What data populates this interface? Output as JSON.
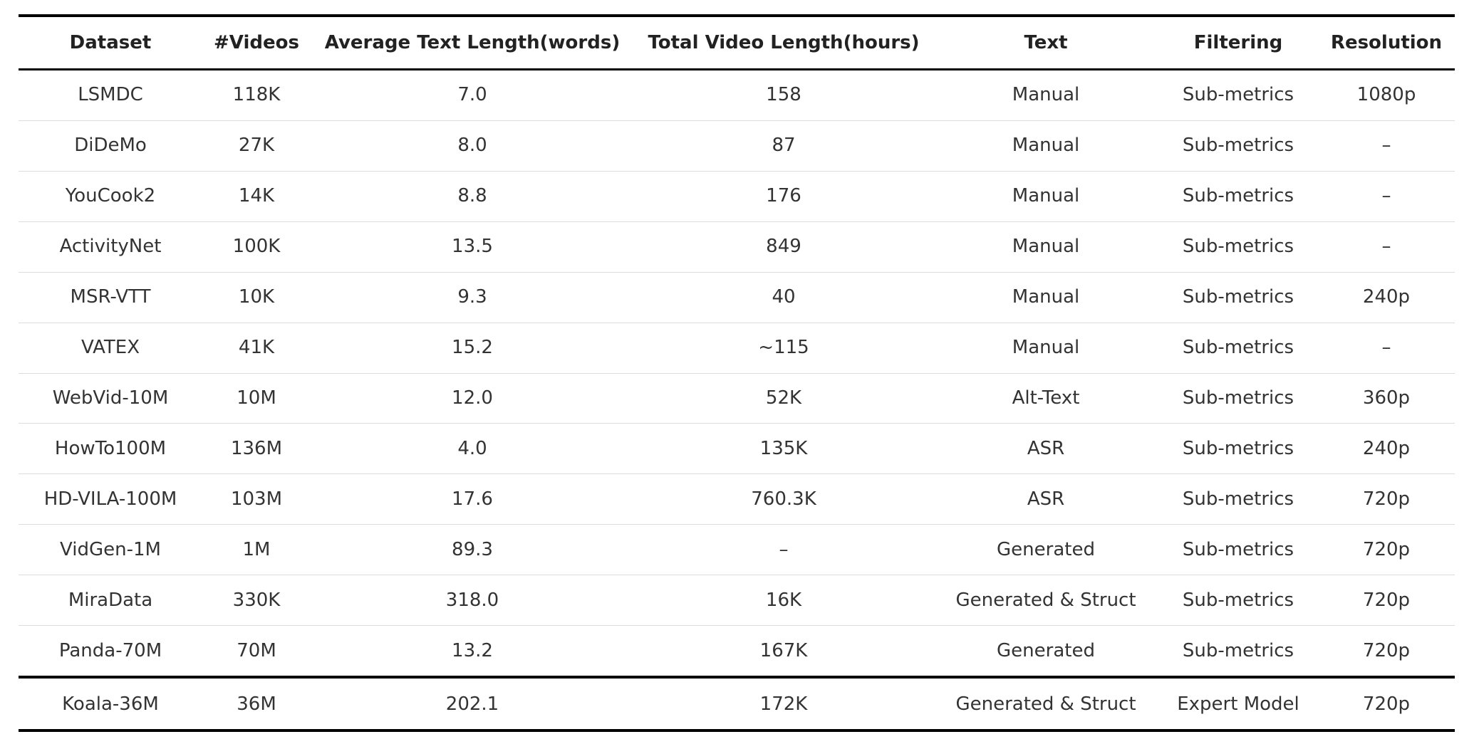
{
  "table": {
    "header": [
      "Dataset",
      "#Videos",
      "Average Text Length(words)",
      "Total Video Length(hours)",
      "Text",
      "Filtering",
      "Resolution"
    ],
    "rows": [
      [
        "LSMDC",
        "118K",
        "7.0",
        "158",
        "Manual",
        "Sub-metrics",
        "1080p"
      ],
      [
        "DiDeMo",
        "27K",
        "8.0",
        "87",
        "Manual",
        "Sub-metrics",
        "–"
      ],
      [
        "YouCook2",
        "14K",
        "8.8",
        "176",
        "Manual",
        "Sub-metrics",
        "–"
      ],
      [
        "ActivityNet",
        "100K",
        "13.5",
        "849",
        "Manual",
        "Sub-metrics",
        "–"
      ],
      [
        "MSR-VTT",
        "10K",
        "9.3",
        "40",
        "Manual",
        "Sub-metrics",
        "240p"
      ],
      [
        "VATEX",
        "41K",
        "15.2",
        "~115",
        "Manual",
        "Sub-metrics",
        "–"
      ],
      [
        "WebVid-10M",
        "10M",
        "12.0",
        "52K",
        "Alt-Text",
        "Sub-metrics",
        "360p"
      ],
      [
        "HowTo100M",
        "136M",
        "4.0",
        "135K",
        "ASR",
        "Sub-metrics",
        "240p"
      ],
      [
        "HD-VILA-100M",
        "103M",
        "17.6",
        "760.3K",
        "ASR",
        "Sub-metrics",
        "720p"
      ],
      [
        "VidGen-1M",
        "1M",
        "89.3",
        "–",
        "Generated",
        "Sub-metrics",
        "720p"
      ],
      [
        "MiraData",
        "330K",
        "318.0",
        "16K",
        "Generated & Struct",
        "Sub-metrics",
        "720p"
      ],
      [
        "Panda-70M",
        "70M",
        "13.2",
        "167K",
        "Generated",
        "Sub-metrics",
        "720p"
      ],
      [
        "Koala-36M",
        "36M",
        "202.1",
        "172K",
        "Generated & Struct",
        "Expert Model",
        "720p"
      ]
    ]
  }
}
